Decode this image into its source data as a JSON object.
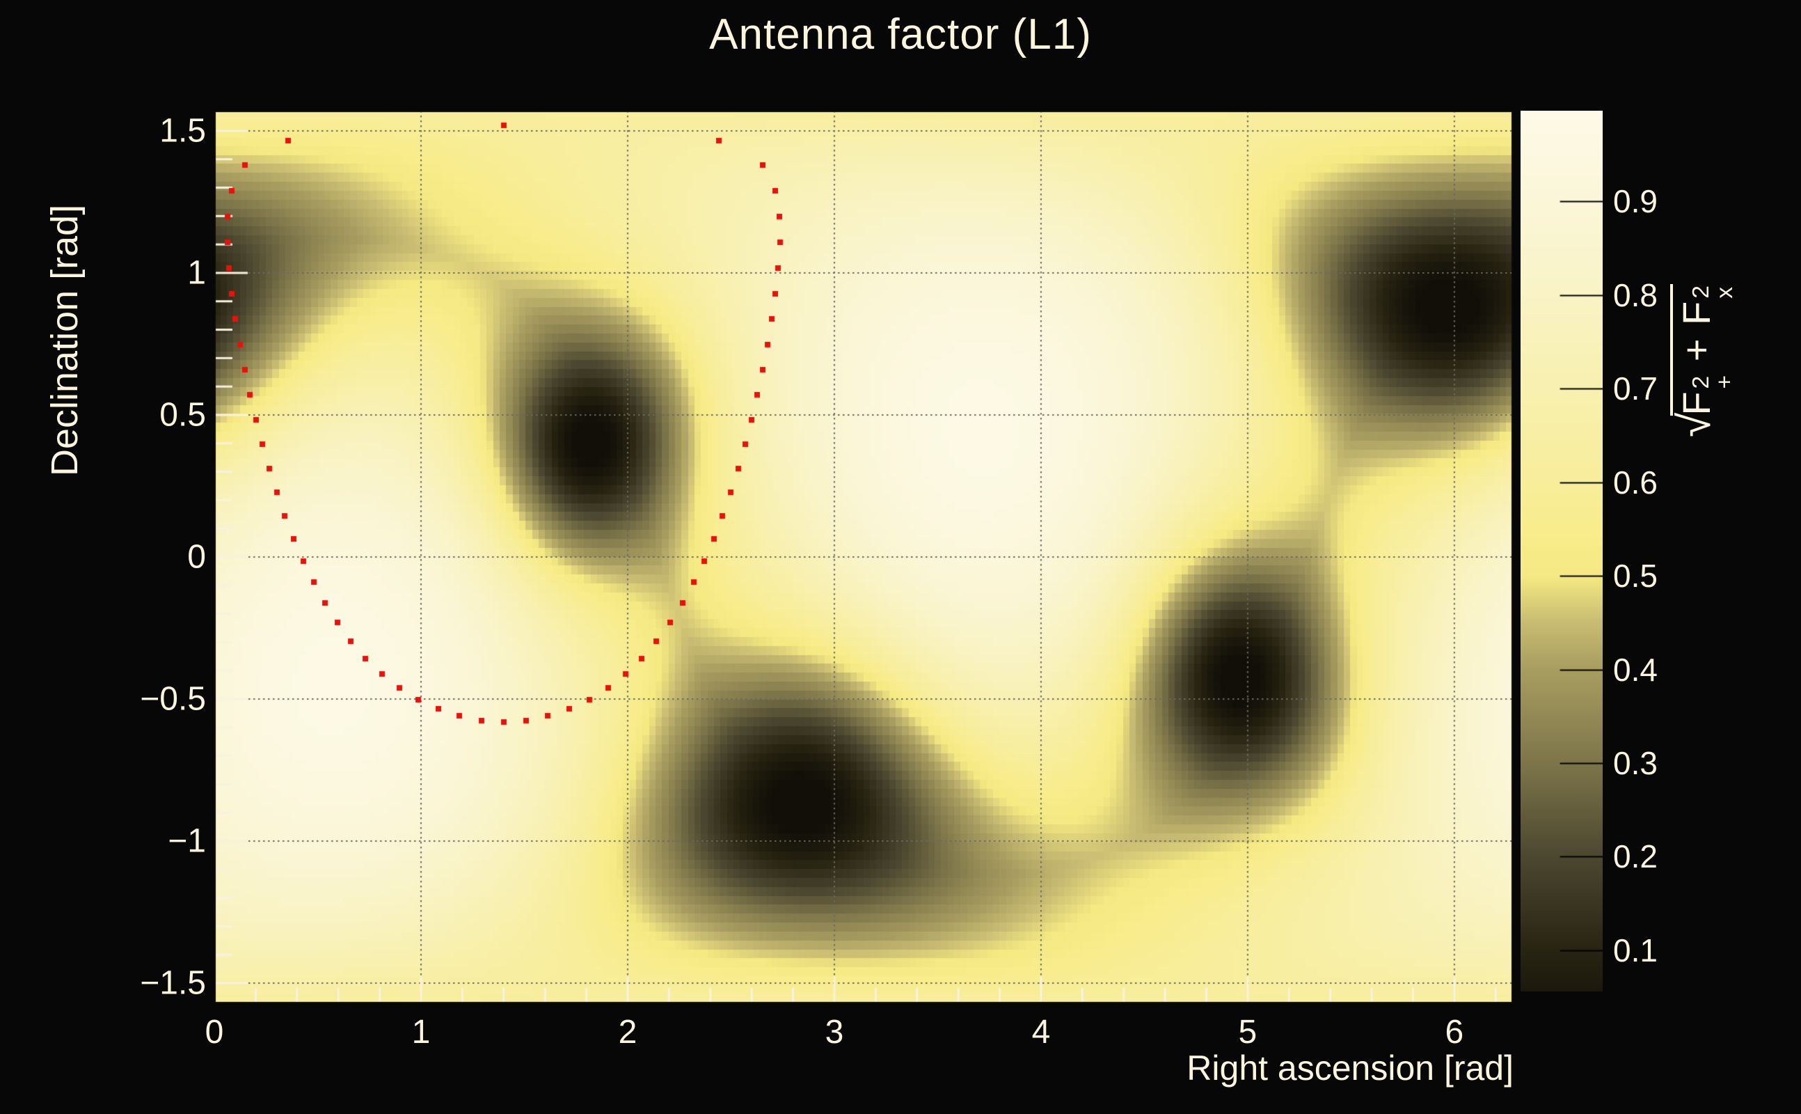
{
  "title": "Antenna factor (L1)",
  "colors": {
    "background": "#070707",
    "text": "#fbf5dd",
    "tick_mark": "#f8f2de",
    "grid": "#6a6a62",
    "frame": "#0a0a08",
    "contour_marker": "#e8120c"
  },
  "axes": {
    "x": {
      "title": "Right ascension [rad]",
      "min": 0,
      "max": 6.2832,
      "major_ticks": [
        0,
        1,
        2,
        3,
        4,
        5,
        6
      ],
      "tick_labels": [
        "0",
        "1",
        "2",
        "3",
        "4",
        "5",
        "6"
      ],
      "minor_step": 0.2
    },
    "y": {
      "title": "Declination [rad]",
      "min": -1.5708,
      "max": 1.5708,
      "major_ticks": [
        1.5,
        1,
        0.5,
        0,
        -0.5,
        -1,
        -1.5
      ],
      "tick_labels": [
        "1.5",
        "1",
        "0.5",
        "0",
        "−0.5",
        "−1",
        "−1.5"
      ],
      "minor_step": 0.1
    },
    "grid_style": "dotted"
  },
  "colorbar": {
    "value_min": 0.056,
    "value_max": 0.997,
    "major_ticks": [
      0.9,
      0.8,
      0.7,
      0.6,
      0.5,
      0.4,
      0.3,
      0.2,
      0.1
    ],
    "tick_labels": [
      "0.9",
      "0.8",
      "0.7",
      "0.6",
      "0.5",
      "0.4",
      "0.3",
      "0.2",
      "0.1"
    ],
    "title_parts": {
      "sqrt": "√",
      "f1": "F",
      "f1_sup": "2",
      "f1_sub": "+",
      "plus": " + ",
      "f2": "F",
      "f2_sup": "2",
      "f2_sub": "x"
    }
  },
  "chart_data": {
    "type": "heatmap",
    "title": "Antenna factor (L1)",
    "xlabel": "Right ascension [rad]",
    "ylabel": "Declination [rad]",
    "zlabel": "sqrt(F+^2 + Fx^2)",
    "x_range": [
      0,
      6.2832
    ],
    "y_range": [
      -1.5708,
      1.5708
    ],
    "z_range": [
      0.056,
      0.997
    ],
    "bins": [
      200,
      100
    ],
    "legend_position": "right-colorbar",
    "grid": true,
    "palette_stops": [
      [
        0.0,
        "#0b0a05"
      ],
      [
        0.1,
        "#282412"
      ],
      [
        0.2,
        "#4c4730"
      ],
      [
        0.3,
        "#7d754a"
      ],
      [
        0.4,
        "#a89d60"
      ],
      [
        0.45,
        "#c8bb72"
      ],
      [
        0.5,
        "#f5e983"
      ],
      [
        0.55,
        "#f8ec8d"
      ],
      [
        0.6,
        "#f8ed9a"
      ],
      [
        0.7,
        "#f8f0af"
      ],
      [
        0.8,
        "#f9f3c5"
      ],
      [
        0.9,
        "#fbf6d8"
      ],
      [
        1.0,
        "#fdfae8"
      ]
    ],
    "model": {
      "description": "antenna response sqrt(F+^2+Fx^2): bright at detector zenith/nadir, four dark nulls; value = base(angle to zenith) * product(1 - exp(-theta_i^2/(2*sigma_i^2)))",
      "base": {
        "zenith_ra": 3.72,
        "zenith_dec": 0.45,
        "floor": 0.5,
        "amp": 0.48,
        "exp": 1.15
      },
      "nulls": [
        {
          "ra": 5.97,
          "dec": 0.88,
          "sigma": 0.32
        },
        {
          "ra": 1.82,
          "dec": 0.4,
          "sigma": 0.28
        },
        {
          "ra": 2.84,
          "dec": -0.87,
          "sigma": 0.33
        },
        {
          "ra": 4.96,
          "dec": -0.43,
          "sigma": 0.3
        }
      ],
      "bright_regions": [
        {
          "ra": 3.72,
          "dec": 0.45,
          "peak_value": 0.98
        },
        {
          "ra": 0.58,
          "dec": -0.45,
          "peak_value": 0.98
        }
      ]
    },
    "contour": {
      "description": "red dotted sky-localization circle (great-circle distance = radius)",
      "marker": "filled-square",
      "marker_size_px": 8,
      "color": "#e8120c",
      "center_ra": 1.4,
      "center_dec": 0.47,
      "radius_rad": 1.05,
      "n_points": 60
    }
  }
}
